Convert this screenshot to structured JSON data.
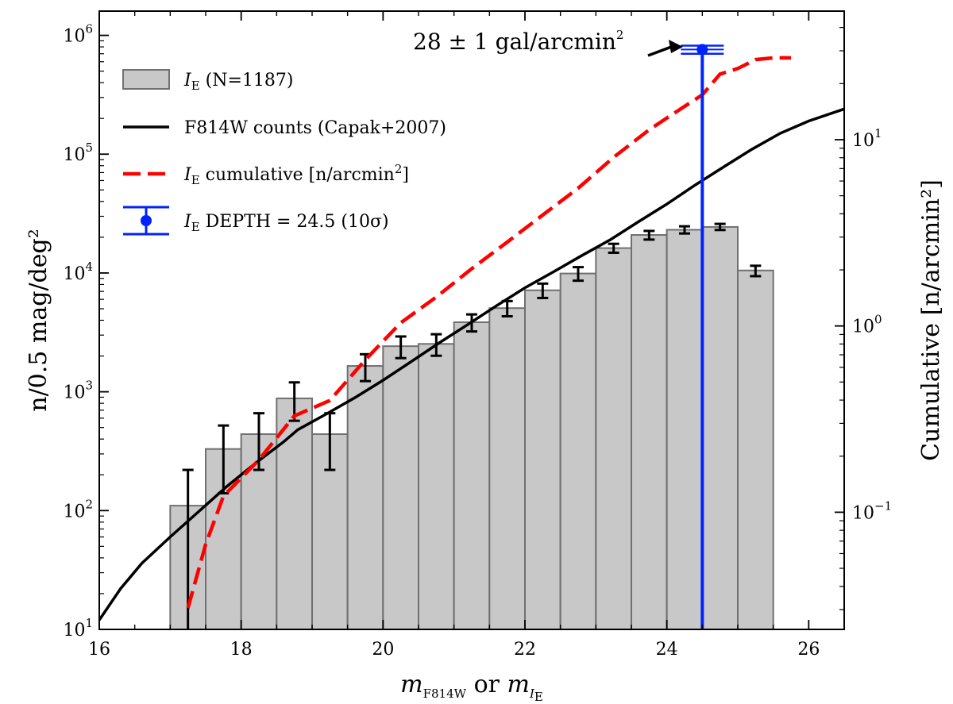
{
  "chart_data": {
    "type": "bar",
    "xlabel": {
      "base1": "m",
      "sub1": "F814W",
      "mid": " or ",
      "base2": "m",
      "sub2a": "I",
      "sub2b": "E"
    },
    "ylabel_left": "n/0.5 mag/deg²",
    "ylabel_right": "Cumulative [n/arcmin²]",
    "xlim": [
      16,
      26.5
    ],
    "ylim_left": [
      10,
      1600000
    ],
    "ylim_right": [
      0.0235,
      49
    ],
    "x_ticks": [
      16,
      18,
      20,
      22,
      24,
      26
    ],
    "x_tick_labels": [
      "16",
      "18",
      "20",
      "22",
      "24",
      "26"
    ],
    "y_left_ticks": [
      {
        "value": 10,
        "base": "10",
        "exp": "1"
      },
      {
        "value": 100,
        "base": "10",
        "exp": "2"
      },
      {
        "value": 1000,
        "base": "10",
        "exp": "3"
      },
      {
        "value": 10000,
        "base": "10",
        "exp": "4"
      },
      {
        "value": 100000,
        "base": "10",
        "exp": "5"
      },
      {
        "value": 1000000,
        "base": "10",
        "exp": "6"
      }
    ],
    "y_right_ticks": [
      {
        "value": 0.1,
        "base": "10",
        "exp": "−1"
      },
      {
        "value": 1,
        "base": "10",
        "exp": "0"
      },
      {
        "value": 10,
        "base": "10",
        "exp": "1"
      }
    ],
    "histogram": {
      "name": "I_E (N=1187)",
      "bin_width": 0.5,
      "bin_left_edges": [
        17.0,
        17.5,
        18.0,
        18.5,
        19.0,
        19.5,
        20.0,
        20.5,
        21.0,
        21.5,
        22.0,
        22.5,
        23.0,
        23.5,
        24.0,
        24.5,
        25.0
      ],
      "values": [
        110,
        330,
        440,
        880,
        440,
        1650,
        2420,
        2530,
        3850,
        5060,
        7150,
        9900,
        16200,
        20900,
        23100,
        24400,
        10500
      ],
      "err_low": [
        null,
        140,
        220,
        570,
        220,
        1230,
        1920,
        2010,
        3220,
        4320,
        6160,
        8610,
        14800,
        19100,
        21500,
        23000,
        9400
      ],
      "err_high": [
        220,
        520,
        660,
        1200,
        660,
        2070,
        2920,
        3050,
        4480,
        5800,
        8140,
        11200,
        17600,
        22600,
        24700,
        25900,
        11500
      ],
      "color": "#c8c8c8",
      "edge_color": "#707070"
    },
    "capak_counts": {
      "name": "F814W counts (Capak+2007)",
      "x": [
        16.0,
        16.3,
        16.6,
        17.0,
        17.4,
        17.8,
        18.2,
        18.6,
        18.8,
        19.2,
        19.6,
        20.0,
        20.4,
        20.8,
        21.2,
        21.6,
        22.0,
        22.4,
        22.8,
        23.2,
        23.6,
        24.0,
        24.4,
        24.8,
        25.2,
        25.6,
        26.0,
        26.5
      ],
      "y": [
        12,
        22,
        36,
        60,
        98,
        160,
        250,
        380,
        480,
        650,
        890,
        1250,
        1800,
        2600,
        3700,
        5300,
        7500,
        10200,
        14000,
        19000,
        27000,
        38000,
        55000,
        78000,
        110000,
        150000,
        190000,
        240000
      ],
      "color": "#000000"
    },
    "cumulative": {
      "name": "I_E cumulative [n/arcmin^2]",
      "axis": "right",
      "x": [
        17.25,
        17.5,
        17.75,
        18.25,
        18.75,
        19.25,
        19.75,
        20.25,
        20.75,
        21.25,
        21.75,
        22.25,
        22.75,
        23.25,
        23.75,
        24.25,
        24.5,
        24.75,
        25.0,
        25.25,
        25.5,
        25.75
      ],
      "y": [
        0.0306,
        0.0673,
        0.122,
        0.191,
        0.329,
        0.398,
        0.658,
        1.04,
        1.43,
        2.03,
        2.82,
        3.94,
        5.49,
        8.04,
        11.3,
        15.1,
        17.4,
        22.5,
        24.1,
        26.9,
        27.5,
        27.5
      ],
      "color": "#ff0000"
    },
    "depth": {
      "name": "I_E DEPTH = 24.5 (10σ)",
      "x": 24.5,
      "y_top": 760000,
      "err": 60000,
      "color": "#0022ff"
    },
    "annotation": {
      "text_num": "28 ± 1 ",
      "text_unit": "gal/arcmin",
      "text_exp": "2",
      "arrow_target": [
        24.25,
        800000
      ]
    },
    "legend": {
      "position": "upper-left",
      "hist_label": {
        "base": "I",
        "sub": "E",
        "rest": " (N=1187)"
      },
      "capak_label": "F814W counts (Capak+2007)",
      "cumul_label": {
        "base": "I",
        "sub": "E",
        "rest": " cumulative [n/arcmin",
        "exp": "2",
        "close": "]"
      },
      "depth_label": {
        "base": "I",
        "sub": "E",
        "rest": " DEPTH = 24.5 (10σ)"
      }
    }
  }
}
